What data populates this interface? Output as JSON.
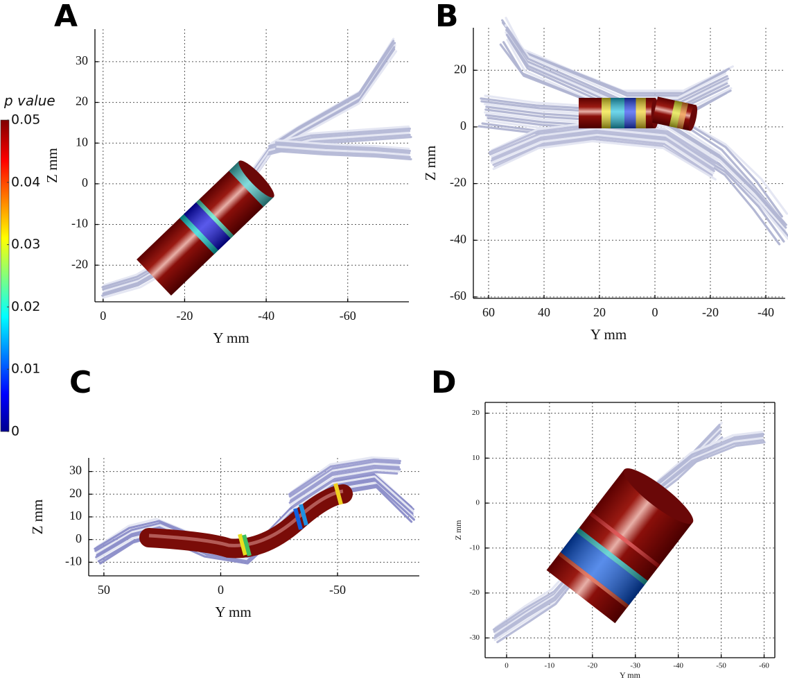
{
  "chart_data": [
    {
      "type": "render",
      "label": "A",
      "xlabel": "Y mm",
      "ylabel": "Z mm",
      "xlim": [
        2,
        -75
      ],
      "ylim": [
        -29,
        38
      ],
      "xticks": [
        0,
        -20,
        -40,
        -60
      ],
      "yticks": [
        -20,
        -10,
        0,
        10,
        20,
        30
      ],
      "grid": true
    },
    {
      "type": "render",
      "label": "B",
      "xlabel": "Y mm",
      "ylabel": "Z mm",
      "xlim": [
        65.5,
        -47
      ],
      "ylim": [
        -60.5,
        35
      ],
      "xticks": [
        60,
        40,
        20,
        0,
        -20,
        -40
      ],
      "yticks": [
        -60,
        -40,
        -20,
        0,
        20
      ],
      "grid": true
    },
    {
      "type": "render",
      "label": "C",
      "xlabel": "Y mm",
      "ylabel": "Z mm",
      "xlim": [
        56.5,
        -85
      ],
      "ylim": [
        -16,
        36
      ],
      "xticks": [
        50,
        0,
        -50
      ],
      "yticks": [
        -10,
        0,
        10,
        20,
        30
      ],
      "grid": true
    },
    {
      "type": "render",
      "label": "D",
      "xlabel": "Y mm",
      "ylabel": "Z mm",
      "xlim": [
        5,
        -62.5
      ],
      "ylim": [
        -34.4,
        22.4
      ],
      "xticks": [
        0,
        -10,
        -20,
        -30,
        -40,
        -50,
        -60
      ],
      "yticks": [
        -30,
        -20,
        -10,
        0,
        10,
        20
      ],
      "grid": true
    },
    {
      "type": "colorbar",
      "title": "p value",
      "lim": [
        0,
        0.05
      ],
      "ticks": [
        0,
        0.01,
        0.02,
        0.03,
        0.04,
        0.05
      ]
    }
  ]
}
